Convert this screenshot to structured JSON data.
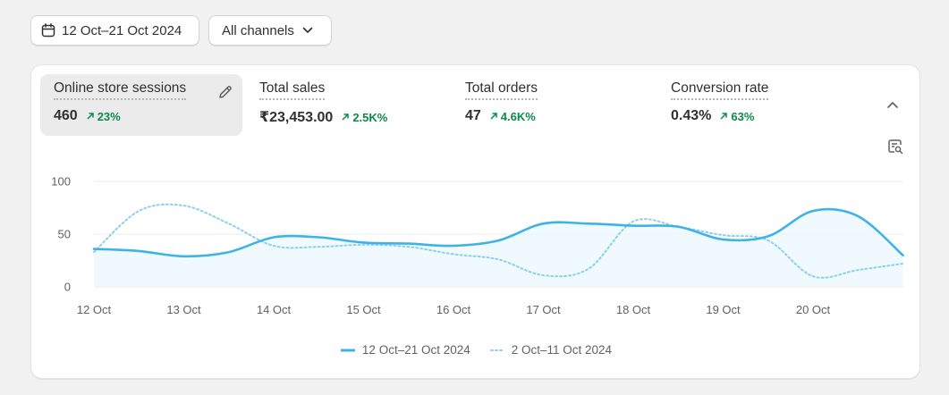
{
  "toolbar": {
    "date_range_label": "12 Oct–21 Oct 2024",
    "channel_label": "All channels"
  },
  "metrics": [
    {
      "title": "Online store sessions",
      "value": "460",
      "change": "23%",
      "active": true
    },
    {
      "title": "Total sales",
      "value": "₹23,453.00",
      "change": "2.5K%"
    },
    {
      "title": "Total orders",
      "value": "47",
      "change": "4.6K%"
    },
    {
      "title": "Conversion rate",
      "value": "0.43%",
      "change": "63%"
    }
  ],
  "colors": {
    "primary_series": "#3db4e5",
    "comparison_series": "#8ccff0",
    "positive_change": "#0c8a4a",
    "active_metric_bg": "#ebebeb"
  },
  "icons": {
    "date": "calendar-icon",
    "channel": "chevron-down-icon",
    "edit": "pencil-icon",
    "collapse": "chevron-up-icon",
    "explore": "report-search-icon",
    "change": "arrow-up-right-icon"
  },
  "chart_data": {
    "type": "line",
    "x": [
      "12 Oct",
      "12.5",
      "13 Oct",
      "13.5",
      "14 Oct",
      "14.5",
      "15 Oct",
      "15.5",
      "16 Oct",
      "16.5",
      "17 Oct",
      "17.5",
      "18 Oct",
      "18.5",
      "19 Oct",
      "19.5",
      "20 Oct",
      "20.5",
      "21 Oct"
    ],
    "categories": [
      "12 Oct",
      "13 Oct",
      "14 Oct",
      "15 Oct",
      "16 Oct",
      "17 Oct",
      "18 Oct",
      "19 Oct",
      "20 Oct"
    ],
    "yticks": [
      0,
      50,
      100
    ],
    "ylim": [
      0,
      100
    ],
    "grid": true,
    "legend_position": "bottom-center",
    "series": [
      {
        "name": "12 Oct–21 Oct 2024",
        "style": "solid",
        "values": [
          36,
          34,
          29,
          33,
          47,
          47,
          42,
          41,
          39,
          44,
          60,
          60,
          58,
          57,
          45,
          48,
          72,
          67,
          30
        ]
      },
      {
        "name": "2 Oct–11 Oct 2024",
        "style": "dotted",
        "values": [
          33,
          72,
          77,
          60,
          39,
          38,
          40,
          38,
          31,
          26,
          11,
          17,
          62,
          57,
          49,
          44,
          10,
          16,
          22
        ]
      }
    ]
  }
}
